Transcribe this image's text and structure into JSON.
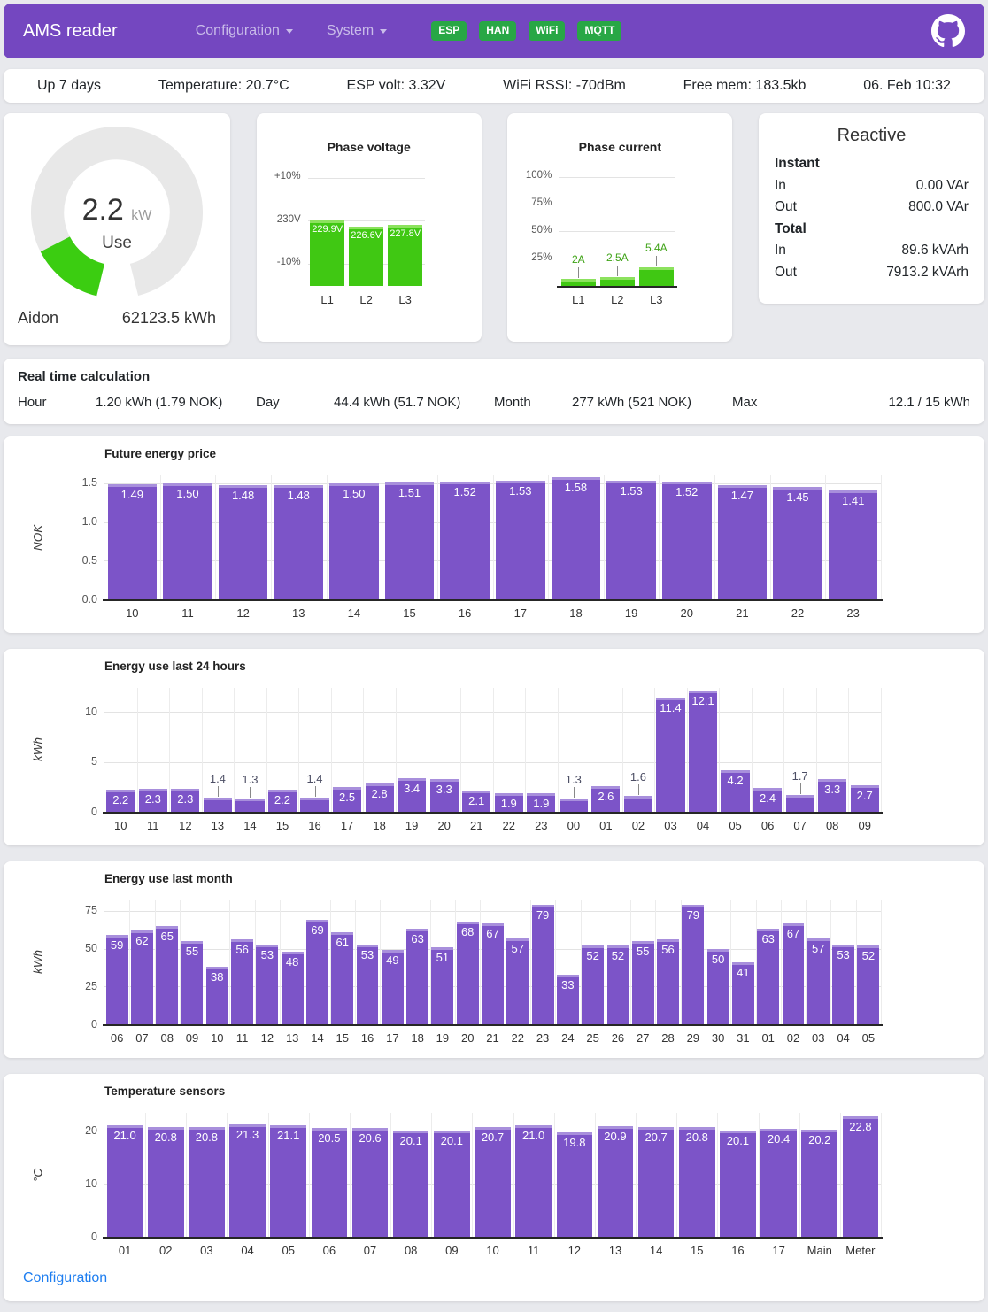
{
  "theme": {
    "header_bg": "#7447c0",
    "badge_green": "#28a745",
    "bar_purple": "#7c54c8",
    "bar_green": "#40c813",
    "gauge_green": "#3bcd11",
    "link_blue": "#1e7ef0"
  },
  "header": {
    "title": "AMS reader",
    "nav": [
      {
        "label": "Configuration"
      },
      {
        "label": "System"
      }
    ],
    "badges": [
      {
        "label": "ESP"
      },
      {
        "label": "HAN"
      },
      {
        "label": "WiFi"
      },
      {
        "label": "MQTT"
      }
    ]
  },
  "status_bar": {
    "items": [
      "Up 7 days",
      "Temperature: 20.7°C",
      "ESP volt: 3.32V",
      "WiFi RSSI: -70dBm",
      "Free mem: 183.5kb",
      "06. Feb 10:32"
    ]
  },
  "gauge": {
    "value": "2.2",
    "unit": "kW",
    "caption": "Use",
    "meter_name": "Aidon",
    "total": "62123.5 kWh",
    "fraction": 0.147
  },
  "reactive": {
    "title": "Reactive",
    "sections": [
      {
        "heading": "Instant",
        "rows": [
          {
            "label": "In",
            "value": "0.00 VAr"
          },
          {
            "label": "Out",
            "value": "800.0 VAr"
          }
        ]
      },
      {
        "heading": "Total",
        "rows": [
          {
            "label": "In",
            "value": "89.6 kVArh"
          },
          {
            "label": "Out",
            "value": "7913.2 kVArh"
          }
        ]
      }
    ]
  },
  "realtime": {
    "title": "Real time calculation",
    "pairs": [
      {
        "label": "Hour",
        "value": "1.20 kWh (1.79 NOK)"
      },
      {
        "label": "Day",
        "value": "44.4 kWh (51.7 NOK)"
      },
      {
        "label": "Month",
        "value": "277 kWh (521 NOK)"
      },
      {
        "label": "Max",
        "value": "12.1 / 15 kWh"
      }
    ]
  },
  "chart_data": [
    {
      "id": "phase-voltage",
      "type": "bar",
      "panel": "small",
      "title": "Phase voltage",
      "categories": [
        "L1",
        "L2",
        "L3"
      ],
      "values": [
        229.9,
        226.6,
        227.8
      ],
      "labels": [
        "229.9V",
        "226.6V",
        "227.8V"
      ],
      "ymin": 195,
      "ymax": 258,
      "gridlines": [
        {
          "value": 253,
          "label": "+10%"
        },
        {
          "value": 230,
          "label": "230V"
        },
        {
          "value": 207,
          "label": "-10%"
        }
      ],
      "baseline": false,
      "bar_color": "#40c813",
      "bar_cap": "#8ce25e",
      "label_mode": "inside",
      "label_color_out": "#3fa317"
    },
    {
      "id": "phase-current",
      "type": "bar",
      "panel": "small",
      "title": "Phase current",
      "categories": [
        "L1",
        "L2",
        "L3"
      ],
      "values": [
        6.3,
        7.8,
        16.9
      ],
      "labels": [
        "2A",
        "2.5A",
        "5.4A"
      ],
      "ymin": 0,
      "ymax": 108,
      "gridlines": [
        {
          "value": 100,
          "label": "100%"
        },
        {
          "value": 75,
          "label": "75%"
        },
        {
          "value": 50,
          "label": "50%"
        },
        {
          "value": 25,
          "label": "25%"
        }
      ],
      "baseline": true,
      "bar_color": "#40c813",
      "bar_cap": "#8ce25e",
      "label_mode": "outside",
      "label_color_out": "#3fa317"
    },
    {
      "id": "future-energy-price",
      "type": "bar",
      "panel": "large",
      "title": "Future energy price",
      "ylabel": "NOK",
      "categories": [
        "10",
        "11",
        "12",
        "13",
        "14",
        "15",
        "16",
        "17",
        "18",
        "19",
        "20",
        "21",
        "22",
        "23"
      ],
      "values": [
        1.49,
        1.5,
        1.48,
        1.48,
        1.5,
        1.51,
        1.52,
        1.53,
        1.58,
        1.53,
        1.52,
        1.47,
        1.45,
        1.41
      ],
      "labels": [
        "1.49",
        "1.50",
        "1.48",
        "1.48",
        "1.50",
        "1.51",
        "1.52",
        "1.53",
        "1.58",
        "1.53",
        "1.52",
        "1.47",
        "1.45",
        "1.41"
      ],
      "ymin": 0,
      "ymax": 1.6,
      "gridlines": [
        {
          "value": 1.5,
          "label": "1.5"
        },
        {
          "value": 1.0,
          "label": "1.0"
        },
        {
          "value": 0.5,
          "label": "0.5"
        },
        {
          "value": 0,
          "label": "0.0"
        }
      ],
      "baseline": true,
      "bar_color": "#7c54c8",
      "bar_cap": "#a88fdc",
      "label_mode": "auto",
      "label_color_out": "#4c4e64"
    },
    {
      "id": "energy-last-24h",
      "type": "bar",
      "panel": "large",
      "title": "Energy use last 24 hours",
      "ylabel": "kWh",
      "categories": [
        "10",
        "11",
        "12",
        "13",
        "14",
        "15",
        "16",
        "17",
        "18",
        "19",
        "20",
        "21",
        "22",
        "23",
        "00",
        "01",
        "02",
        "03",
        "04",
        "05",
        "06",
        "07",
        "08",
        "09"
      ],
      "values": [
        2.2,
        2.3,
        2.3,
        1.4,
        1.3,
        2.2,
        1.4,
        2.5,
        2.8,
        3.4,
        3.3,
        2.1,
        1.9,
        1.9,
        1.3,
        2.6,
        1.6,
        11.4,
        12.1,
        4.2,
        2.4,
        1.7,
        3.3,
        2.7
      ],
      "labels": [
        "2.2",
        "2.3",
        "2.3",
        "1.4",
        "1.3",
        "2.2",
        "1.4",
        "2.5",
        "2.8",
        "3.4",
        "3.3",
        "2.1",
        "1.9",
        "1.9",
        "1.3",
        "2.6",
        "1.6",
        "11.4",
        "12.1",
        "4.2",
        "2.4",
        "1.7",
        "3.3",
        "2.7"
      ],
      "ymin": 0,
      "ymax": 12.4,
      "gridlines": [
        {
          "value": 10,
          "label": "10"
        },
        {
          "value": 5,
          "label": "5"
        },
        {
          "value": 0,
          "label": "0"
        }
      ],
      "baseline": true,
      "bar_color": "#7c54c8",
      "bar_cap": "#a88fdc",
      "label_mode": "auto",
      "label_color_out": "#4c4e64"
    },
    {
      "id": "energy-last-month",
      "type": "bar",
      "panel": "large",
      "title": "Energy use last month",
      "ylabel": "kWh",
      "categories": [
        "06",
        "07",
        "08",
        "09",
        "10",
        "11",
        "12",
        "13",
        "14",
        "15",
        "16",
        "17",
        "18",
        "19",
        "20",
        "21",
        "22",
        "23",
        "24",
        "25",
        "26",
        "27",
        "28",
        "29",
        "30",
        "31",
        "01",
        "02",
        "03",
        "04",
        "05"
      ],
      "values": [
        59,
        62,
        65,
        55,
        38,
        56,
        53,
        48,
        69,
        61,
        53,
        49,
        63,
        51,
        68,
        67,
        57,
        79,
        33,
        52,
        52,
        55,
        56,
        79,
        50,
        41,
        63,
        67,
        57,
        53,
        52
      ],
      "labels": [
        "59",
        "62",
        "65",
        "55",
        "38",
        "56",
        "53",
        "48",
        "69",
        "61",
        "53",
        "49",
        "63",
        "51",
        "68",
        "67",
        "57",
        "79",
        "33",
        "52",
        "52",
        "55",
        "56",
        "79",
        "50",
        "41",
        "63",
        "67",
        "57",
        "53",
        "52"
      ],
      "ymin": 0,
      "ymax": 82,
      "gridlines": [
        {
          "value": 75,
          "label": "75"
        },
        {
          "value": 50,
          "label": "50"
        },
        {
          "value": 25,
          "label": "25"
        },
        {
          "value": 0,
          "label": "0"
        }
      ],
      "baseline": true,
      "bar_color": "#7c54c8",
      "bar_cap": "#a88fdc",
      "label_mode": "auto",
      "label_color_out": "#4c4e64"
    },
    {
      "id": "temperature-sensors",
      "type": "bar",
      "panel": "large",
      "title": "Temperature sensors",
      "ylabel": "°C",
      "categories": [
        "01",
        "02",
        "03",
        "04",
        "05",
        "06",
        "07",
        "08",
        "09",
        "10",
        "11",
        "12",
        "13",
        "14",
        "15",
        "16",
        "17",
        "Main",
        "Meter"
      ],
      "values": [
        21.0,
        20.8,
        20.8,
        21.3,
        21.1,
        20.5,
        20.6,
        20.1,
        20.1,
        20.7,
        21.0,
        19.8,
        20.9,
        20.7,
        20.8,
        20.1,
        20.4,
        20.2,
        22.8
      ],
      "labels": [
        "21.0",
        "20.8",
        "20.8",
        "21.3",
        "21.1",
        "20.5",
        "20.6",
        "20.1",
        "20.1",
        "20.7",
        "21.0",
        "19.8",
        "20.9",
        "20.7",
        "20.8",
        "20.1",
        "20.4",
        "20.2",
        "22.8"
      ],
      "ymin": 0,
      "ymax": 23.4,
      "gridlines": [
        {
          "value": 20,
          "label": "20"
        },
        {
          "value": 10,
          "label": "10"
        },
        {
          "value": 0,
          "label": "0"
        }
      ],
      "baseline": true,
      "bar_color": "#7c54c8",
      "bar_cap": "#a88fdc",
      "label_mode": "auto",
      "label_color_out": "#4c4e64"
    }
  ],
  "footer": {
    "link_label": "Configuration"
  }
}
